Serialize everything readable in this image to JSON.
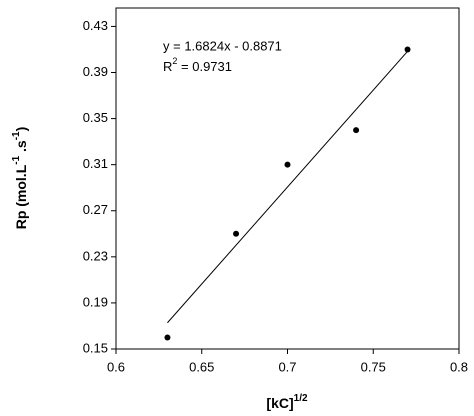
{
  "chart_data": {
    "type": "scatter",
    "x_label": {
      "base": "[kC]",
      "sup": "1/2"
    },
    "y_label": {
      "parts": [
        "Rp (mol.L",
        "-1",
        " .s",
        "-1",
        ")"
      ]
    },
    "x": [
      0.63,
      0.67,
      0.7,
      0.74,
      0.77
    ],
    "values": [
      0.16,
      0.25,
      0.31,
      0.34,
      0.41
    ],
    "color": "#000000",
    "trendline": {
      "x": [
        0.63,
        0.77
      ],
      "values": [
        0.1728,
        0.4084
      ],
      "color": "#000000"
    },
    "equation": "y = 1.6824x - 0.8871",
    "r2": {
      "base": "R",
      "sup": "2",
      "rest": " = 0.9731"
    },
    "xlim": [
      0.6,
      0.8
    ],
    "xticks": [
      0.6,
      0.65,
      0.7,
      0.75,
      0.8
    ],
    "ylim": [
      0.15,
      0.446
    ],
    "yticks": [
      0.15,
      0.19,
      0.23,
      0.27,
      0.31,
      0.35,
      0.39,
      0.43
    ],
    "grid": false
  }
}
